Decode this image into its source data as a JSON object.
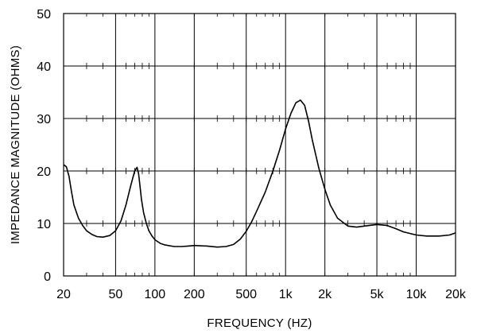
{
  "chart_data": {
    "type": "line",
    "xlabel": "FREQUENCY  (HZ)",
    "ylabel": "IMPEDANCE MAGNITUDE  (OHMS)",
    "xscale": "log",
    "xlim": [
      20,
      20000
    ],
    "ylim": [
      0,
      50
    ],
    "grid": true,
    "x_ticks": [
      20,
      50,
      100,
      200,
      500,
      1000,
      2000,
      5000,
      10000,
      20000
    ],
    "x_tick_labels": [
      "20",
      "50",
      "100",
      "200",
      "500",
      "1k",
      "2k",
      "5k",
      "10k",
      "20k"
    ],
    "y_ticks": [
      0,
      10,
      20,
      30,
      40,
      50
    ],
    "y_tick_labels": [
      "0",
      "10",
      "20",
      "30",
      "40",
      "50"
    ],
    "colors": {
      "line": "#000000",
      "grid": "#000000",
      "background": "#ffffff"
    },
    "series": [
      {
        "x": [
          20,
          21,
          22,
          23,
          24,
          26,
          28,
          30,
          33,
          36,
          40,
          45,
          50,
          55,
          60,
          65,
          70,
          73,
          75,
          77,
          79,
          82,
          86,
          90,
          95,
          100,
          110,
          120,
          140,
          160,
          180,
          200,
          250,
          300,
          350,
          400,
          450,
          500,
          550,
          600,
          700,
          800,
          900,
          1000,
          1100,
          1200,
          1300,
          1400,
          1500,
          1600,
          1800,
          2000,
          2200,
          2500,
          3000,
          3500,
          4000,
          5000,
          6000,
          7000,
          8000,
          10000,
          12000,
          15000,
          18000,
          20000
        ],
        "y": [
          21.2,
          20.8,
          19.0,
          16.0,
          13.5,
          11.0,
          9.6,
          8.6,
          7.9,
          7.5,
          7.4,
          7.7,
          8.6,
          10.5,
          13.5,
          17.0,
          20.0,
          20.7,
          19.5,
          17.0,
          14.5,
          12.0,
          10.0,
          8.6,
          7.6,
          6.9,
          6.2,
          5.9,
          5.6,
          5.6,
          5.7,
          5.8,
          5.7,
          5.5,
          5.6,
          6.0,
          7.0,
          8.5,
          10.3,
          12.3,
          16.0,
          20.0,
          24.0,
          28.0,
          31.0,
          33.0,
          33.5,
          32.5,
          29.5,
          26.0,
          20.5,
          16.5,
          13.5,
          11.0,
          9.5,
          9.3,
          9.5,
          9.8,
          9.6,
          9.0,
          8.4,
          7.8,
          7.6,
          7.6,
          7.8,
          8.2
        ]
      }
    ]
  }
}
